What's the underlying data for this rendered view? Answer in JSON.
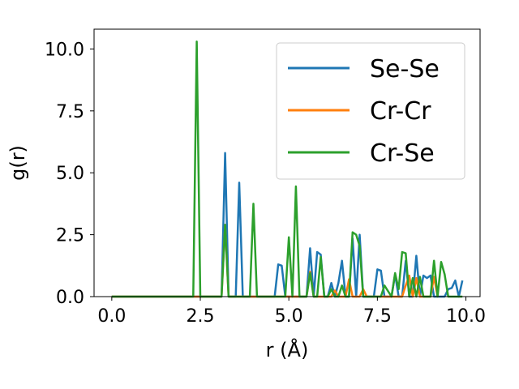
{
  "chart_data": {
    "type": "line",
    "xlabel": "r (Å)",
    "ylabel": "g(r)",
    "xlim": [
      -0.5,
      10.4
    ],
    "ylim": [
      0,
      10.8
    ],
    "xticks": [
      0,
      2.5,
      5,
      7.5,
      10
    ],
    "xtick_labels": [
      "0.0",
      "2.5",
      "5.0",
      "7.5",
      "10.0"
    ],
    "yticks": [
      0,
      2.5,
      5,
      7.5,
      10
    ],
    "ytick_labels": [
      "0.0",
      "2.5",
      "5.0",
      "7.5",
      "10.0"
    ],
    "grid": false,
    "legend_position": "upper right",
    "series": [
      {
        "name": "Se-Se",
        "color": "#1f77b4",
        "x": [
          0.0,
          3.1,
          3.2,
          3.3,
          3.5,
          3.6,
          3.7,
          4.6,
          4.7,
          4.8,
          4.9,
          5.5,
          5.6,
          5.7,
          5.8,
          5.9,
          6.0,
          6.1,
          6.2,
          6.3,
          6.4,
          6.5,
          6.6,
          6.7,
          6.8,
          6.9,
          7.0,
          7.1,
          7.4,
          7.5,
          7.6,
          7.7,
          7.9,
          8.0,
          8.1,
          8.2,
          8.3,
          8.4,
          8.5,
          8.6,
          8.7,
          8.8,
          8.9,
          9.0,
          9.1,
          9.2,
          9.3,
          9.4,
          9.5,
          9.6,
          9.7,
          9.8,
          9.9
        ],
        "values": [
          0.0,
          0.0,
          5.8,
          0.0,
          0.0,
          4.6,
          0.0,
          0.0,
          1.3,
          1.25,
          0.0,
          0.0,
          1.95,
          0.0,
          1.8,
          1.7,
          0.0,
          0.0,
          0.55,
          0.0,
          0.55,
          1.45,
          0.0,
          0.0,
          2.35,
          0.0,
          2.5,
          0.0,
          0.0,
          1.1,
          1.05,
          0.0,
          0.0,
          0.9,
          0.0,
          0.0,
          1.45,
          0.0,
          0.0,
          1.65,
          0.0,
          0.85,
          0.75,
          0.85,
          0.0,
          0.0,
          0.0,
          0.0,
          0.3,
          0.35,
          0.65,
          0.0,
          0.65
        ]
      },
      {
        "name": "Cr-Cr",
        "color": "#ff7f0e",
        "x": [
          0.0,
          3.1,
          3.2,
          3.3,
          5.5,
          5.6,
          5.7,
          6.2,
          6.3,
          6.4,
          6.6,
          6.7,
          6.8,
          7.0,
          7.1,
          7.2,
          8.2,
          8.3,
          8.4,
          8.5,
          8.6,
          8.7,
          9.0,
          9.1,
          9.2
        ],
        "values": [
          0.0,
          0.0,
          2.9,
          0.0,
          0.0,
          1.0,
          0.0,
          0.0,
          0.25,
          0.0,
          0.0,
          0.7,
          0.0,
          0.0,
          0.3,
          0.0,
          0.0,
          0.45,
          0.85,
          0.0,
          0.75,
          0.0,
          0.0,
          0.8,
          0.0
        ]
      },
      {
        "name": "Cr-Se",
        "color": "#2ca02c",
        "x": [
          0.0,
          2.3,
          2.4,
          2.5,
          3.1,
          3.2,
          3.3,
          3.9,
          4.0,
          4.1,
          4.9,
          5.0,
          5.1,
          5.2,
          5.3,
          5.5,
          5.6,
          5.7,
          5.8,
          5.9,
          6.0,
          6.1,
          6.2,
          6.3,
          6.4,
          6.5,
          6.6,
          6.7,
          6.8,
          6.9,
          7.0,
          7.1,
          7.6,
          7.7,
          7.9,
          8.0,
          8.1,
          8.2,
          8.3,
          8.4,
          8.5,
          8.6,
          8.7,
          8.8,
          8.9,
          9.0,
          9.1,
          9.2,
          9.3,
          9.4,
          9.5,
          9.6,
          9.7,
          9.8,
          9.9
        ],
        "values": [
          0.0,
          0.0,
          10.3,
          0.0,
          0.0,
          2.9,
          0.0,
          0.0,
          3.75,
          0.0,
          0.0,
          2.4,
          0.0,
          4.45,
          0.0,
          0.0,
          0.95,
          0.0,
          0.0,
          1.6,
          0.0,
          0.0,
          0.3,
          0.0,
          0.0,
          0.45,
          0.0,
          0.0,
          2.6,
          2.5,
          2.05,
          0.0,
          0.0,
          0.45,
          0.0,
          0.95,
          0.3,
          1.8,
          1.75,
          0.0,
          0.75,
          0.0,
          0.8,
          0.0,
          0.0,
          0.0,
          1.45,
          0.0,
          1.4,
          0.9,
          0.0,
          0.0,
          0.0,
          0.0,
          0.0
        ]
      }
    ]
  }
}
